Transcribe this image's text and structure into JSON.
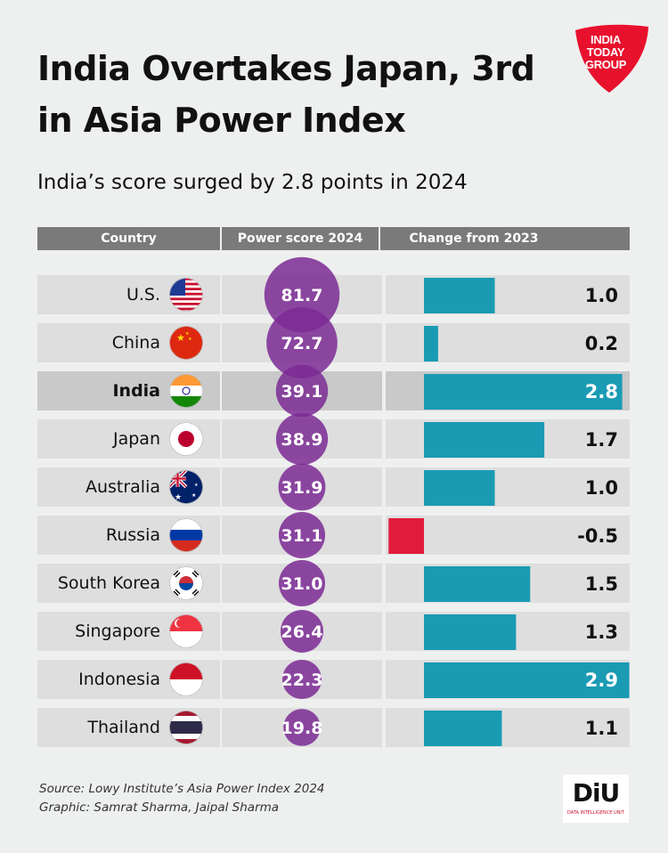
{
  "title": "India Overtakes Japan, 3rd in Asia Power Index",
  "subtitle": "India’s score surged by 2.8 points in 2024",
  "logo": {
    "line1": "INDIA",
    "line2": "TODAY",
    "line3": "GROUP",
    "color": "#e8112d"
  },
  "columns": {
    "country": "Country",
    "score": "Power score 2024",
    "change": "Change from 2023"
  },
  "colors": {
    "bubble": "#7b2a94",
    "bar_positive": "#1a9bb3",
    "bar_negative": "#e01b3c",
    "header": "#7a7a7a"
  },
  "chart_data": {
    "type": "table",
    "title": "India Overtakes Japan, 3rd in Asia Power Index",
    "subtitle": "India’s score surged by 2.8 points in 2024",
    "categories": [
      "U.S.",
      "China",
      "India",
      "Japan",
      "Australia",
      "Russia",
      "South Korea",
      "Singapore",
      "Indonesia",
      "Thailand"
    ],
    "series": [
      {
        "name": "Power score 2024",
        "values": [
          81.7,
          72.7,
          39.1,
          38.9,
          31.9,
          31.1,
          31.0,
          26.4,
          22.3,
          19.8
        ]
      },
      {
        "name": "Change from 2023",
        "values": [
          1.0,
          0.2,
          2.8,
          1.7,
          1.0,
          -0.5,
          1.5,
          1.3,
          2.9,
          1.1
        ]
      }
    ],
    "highlight": "India"
  },
  "rows": [
    {
      "country": "U.S.",
      "score": "81.7",
      "change": "1.0",
      "flag": "us-flag-icon"
    },
    {
      "country": "China",
      "score": "72.7",
      "change": "0.2",
      "flag": "china-flag-icon"
    },
    {
      "country": "India",
      "score": "39.1",
      "change": "2.8",
      "flag": "india-flag-icon"
    },
    {
      "country": "Japan",
      "score": "38.9",
      "change": "1.7",
      "flag": "japan-flag-icon"
    },
    {
      "country": "Australia",
      "score": "31.9",
      "change": "1.0",
      "flag": "australia-flag-icon"
    },
    {
      "country": "Russia",
      "score": "31.1",
      "change": "-0.5",
      "flag": "russia-flag-icon"
    },
    {
      "country": "South Korea",
      "score": "31.0",
      "change": "1.5",
      "flag": "south-korea-flag-icon"
    },
    {
      "country": "Singapore",
      "score": "26.4",
      "change": "1.3",
      "flag": "singapore-flag-icon"
    },
    {
      "country": "Indonesia",
      "score": "22.3",
      "change": "2.9",
      "flag": "indonesia-flag-icon"
    },
    {
      "country": "Thailand",
      "score": "19.8",
      "change": "1.1",
      "flag": "thailand-flag-icon"
    }
  ],
  "source": "Source: Lowy Institute’s Asia Power Index 2024",
  "credit": "Graphic: Samrat Sharma, Jaipal Sharma",
  "diu_logo": {
    "text": "DiU",
    "subtext": "DATA INTELLIGENCE UNIT"
  }
}
